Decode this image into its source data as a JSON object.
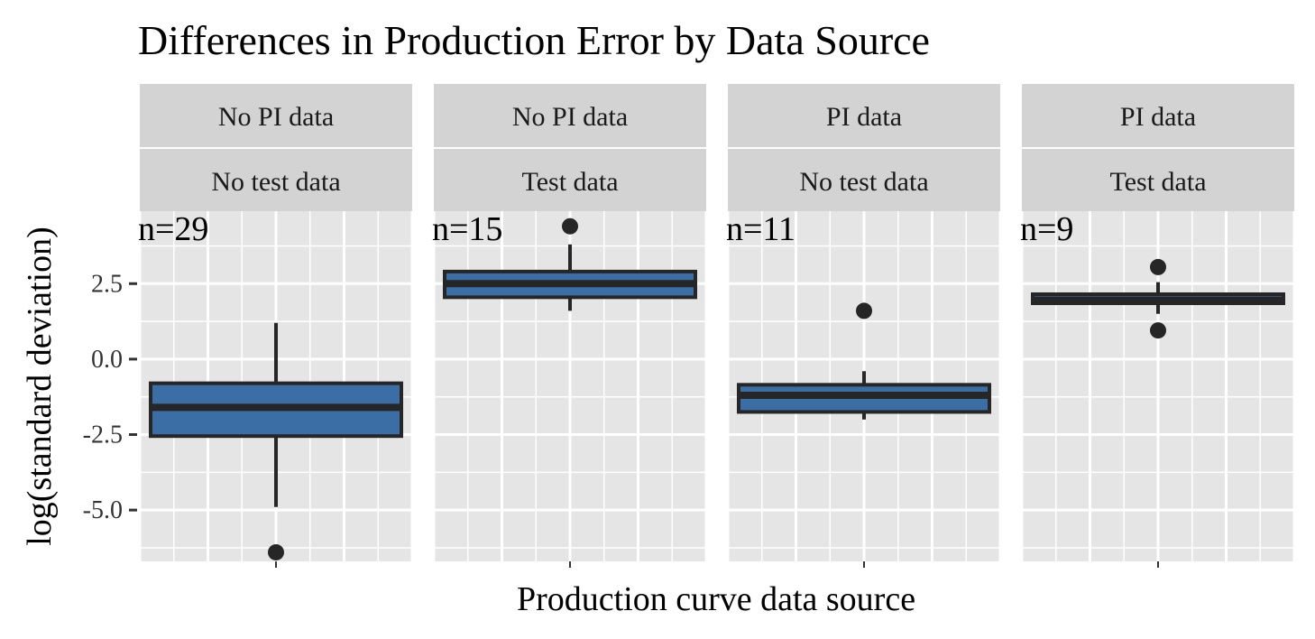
{
  "chart_data": {
    "type": "boxplot",
    "title": "Differences in Production Error by Data Source",
    "xlabel": "Production curve data source",
    "ylabel": "log(standard deviation)",
    "ylim": [
      -6.7,
      4.9
    ],
    "yticks": [
      2.5,
      0.0,
      -2.5,
      -5.0
    ],
    "ytick_labels": [
      "2.5",
      "0.0",
      "-2.5",
      "-5.0"
    ],
    "grid": true,
    "colors": {
      "box_fill": "#3a6ea5",
      "box_line": "#262626",
      "panel_bg": "#e5e5e5",
      "strip_bg": "#d3d3d3",
      "grid": "#ffffff"
    },
    "facets": [
      {
        "row1": "No PI data",
        "row2": "No test data",
        "n_label": "n=29",
        "whisker_low": -4.9,
        "q1": -2.55,
        "median": -1.6,
        "q3": -0.8,
        "whisker_high": 1.2,
        "outliers": [
          -6.4
        ]
      },
      {
        "row1": "No PI data",
        "row2": "Test data",
        "n_label": "n=15",
        "whisker_low": 1.6,
        "q1": 2.05,
        "median": 2.5,
        "q3": 2.9,
        "whisker_high": 3.8,
        "outliers": [
          4.4
        ]
      },
      {
        "row1": "PI data",
        "row2": "No test data",
        "n_label": "n=11",
        "whisker_low": -2.0,
        "q1": -1.75,
        "median": -1.2,
        "q3": -0.85,
        "whisker_high": -0.4,
        "outliers": [
          1.6
        ]
      },
      {
        "row1": "PI data",
        "row2": "Test data",
        "n_label": "n=9",
        "whisker_low": 1.5,
        "q1": 1.85,
        "median": 1.95,
        "q3": 2.15,
        "whisker_high": 2.55,
        "outliers": [
          3.05,
          0.95
        ]
      }
    ]
  }
}
